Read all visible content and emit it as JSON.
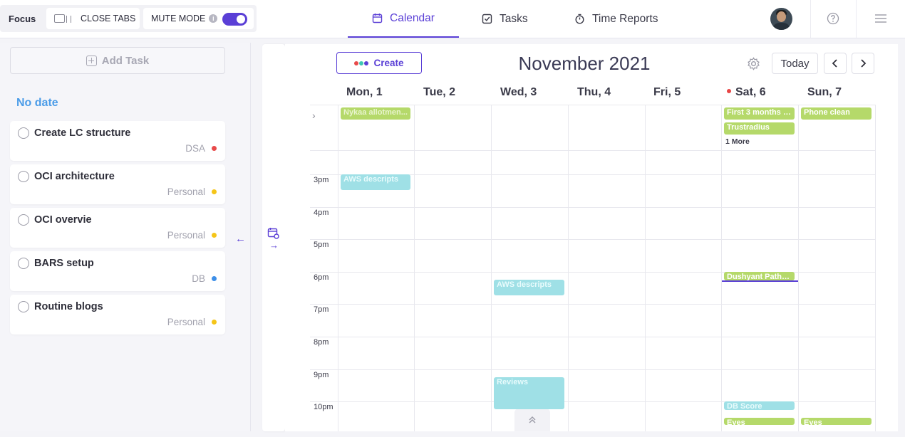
{
  "topbar": {
    "focus_label": "Focus",
    "close_tabs_label": "CLOSE TABS",
    "mute_mode_label": "MUTE MODE",
    "mute_mode_on": true,
    "nav": [
      {
        "label": "Calendar",
        "icon": "calendar-icon",
        "active": true
      },
      {
        "label": "Tasks",
        "icon": "checkbox-icon",
        "active": false
      },
      {
        "label": "Time Reports",
        "icon": "stopwatch-icon",
        "active": false
      }
    ]
  },
  "left_panel": {
    "add_task_label": "Add Task",
    "section_title": "No date",
    "tasks": [
      {
        "title": "Create LC structure",
        "tag": "DSA",
        "dot_color": "#e84a4a"
      },
      {
        "title": "OCI architecture",
        "tag": "Personal",
        "dot_color": "#f5c518"
      },
      {
        "title": "OCI overvie",
        "tag": "Personal",
        "dot_color": "#f5c518"
      },
      {
        "title": "BARS setup",
        "tag": "DB",
        "dot_color": "#3d8fe8"
      },
      {
        "title": "Routine blogs",
        "tag": "Personal",
        "dot_color": "#f5c518"
      }
    ]
  },
  "calendar": {
    "create_label": "Create",
    "month_title": "November 2021",
    "today_label": "Today",
    "days": [
      "Mon, 1",
      "Tue, 2",
      "Wed, 3",
      "Thu, 4",
      "Fri, 5",
      "Sat, 6",
      "Sun, 7"
    ],
    "today_index": 5,
    "hours": [
      "3pm",
      "4pm",
      "5pm",
      "6pm",
      "7pm",
      "8pm",
      "9pm",
      "10pm"
    ],
    "all_day_events": [
      {
        "title": "Nykaa allotmen...",
        "day": 0,
        "row": 0,
        "color": "green",
        "faded": true
      },
      {
        "title": "First 3 months a...",
        "day": 5,
        "row": 0,
        "color": "green",
        "faded": false
      },
      {
        "title": "Trustradius",
        "day": 5,
        "row": 1,
        "color": "green",
        "faded": false
      },
      {
        "title": "Phone clean",
        "day": 6,
        "row": 0,
        "color": "green",
        "faded": false
      }
    ],
    "more_label": "1 More",
    "timed_events": [
      {
        "title": "AWS descripts",
        "day": 0,
        "start": 15.0,
        "end": 15.5,
        "color": "cyan"
      },
      {
        "title": "Dushyant Patha...",
        "day": 5,
        "start": 18.0,
        "end": 18.25,
        "color": "green"
      },
      {
        "title": "AWS descripts",
        "day": 2,
        "start": 18.25,
        "end": 18.75,
        "color": "cyan"
      },
      {
        "title": "Reviews",
        "day": 2,
        "start": 21.25,
        "end": 22.25,
        "color": "cyan"
      },
      {
        "title": "DB Score",
        "day": 5,
        "start": 22.0,
        "end": 22.25,
        "color": "cyan"
      },
      {
        "title": "Eyes",
        "day": 5,
        "start": 22.5,
        "end": 22.75,
        "color": "green"
      },
      {
        "title": "Eyes",
        "day": 6,
        "start": 22.5,
        "end": 22.75,
        "color": "green"
      }
    ],
    "colors": {
      "accent": "#5a3fd6",
      "green": "#b5d96a",
      "cyan": "#9fe0e6",
      "today_dot": "#e84545"
    }
  }
}
